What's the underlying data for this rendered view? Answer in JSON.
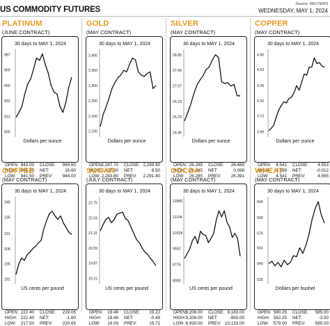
{
  "header": {
    "title": "US COMMODITY FUTURES",
    "source": "Source: REUTERS",
    "date": "WEDNESDAY, MAY 1, 2024"
  },
  "panels": [
    {
      "title": "PLATINUM",
      "contract": "(JUNE CONTRACT)",
      "period": "30 days to MAY 1, 2024",
      "unit": "Dollars per ounce",
      "stats": {
        "open_label": "OPEN:",
        "open": "943.00",
        "close_label": "CLOSE:",
        "close": "960.60",
        "high_label": "HIGH:",
        "high": "965.00",
        "net_label": "NET:",
        "net": "16.60",
        "low_label": "LOW:",
        "low": "941.50",
        "prev_label": "PREV:",
        "prev": "944.00"
      }
    },
    {
      "title": "GOLD",
      "contract": "(MAY CONTRACT)",
      "period": "30 days to MAY 1, 2024",
      "unit": "Dollars per ounce",
      "stats": {
        "open_label": "OPEN:",
        "open": "2,287.70",
        "close_label": "CLOSE:",
        "close": "2,299.90",
        "high_label": "HIGH:",
        "high": "2,327.30",
        "net_label": "NET:",
        "net": "8.50",
        "low_label": "LOW:",
        "low": "2,283.80",
        "prev_label": "PREV:",
        "prev": "2,291.40"
      }
    },
    {
      "title": "SILVER",
      "contract": "(MAY CONTRACT)",
      "period": "30 days to MAY 1, 2024",
      "unit": "Dollars per ounce",
      "stats": {
        "open_label": "OPEN:",
        "open": "26.285",
        "close_label": "CLOSE:",
        "close": "26.489",
        "high_label": "HIGH:",
        "high": "26.945",
        "net_label": "NET:",
        "net": "0.098",
        "low_label": "LOW:",
        "low": "26.285",
        "prev_label": "PREV:",
        "prev": "26.391"
      }
    },
    {
      "title": "COPPER",
      "contract": "(MAY CONTRACT)",
      "period": "30 days to MAY 1, 2024",
      "unit": "Dollars per ounce",
      "stats": {
        "open_label": "OPEN:",
        "open": "4.541",
        "close_label": "CLOSE:",
        "close": "4.553",
        "high_label": "HIGH:",
        "high": "4.599",
        "net_label": "NET:",
        "net": "-0.012",
        "low_label": "LOW:",
        "low": "4.541",
        "prev_label": "PREV:",
        "prev": "4.565"
      }
    },
    {
      "title": "COFFEE",
      "contract": "(MAY CONTRACT)",
      "period": "30 days to MAY 1, 2024",
      "unit": "US cents per pound",
      "stats": {
        "open_label": "OPEN:",
        "open": "222.40",
        "close_label": "CLOSE:",
        "close": "219.05",
        "high_label": "HIGH:",
        "high": "222.40",
        "net_label": "NET:",
        "net": "-1.60",
        "low_label": "LOW:",
        "low": "217.50",
        "prev_label": "PREV:",
        "prev": "220.65"
      }
    },
    {
      "title": "SUGAR",
      "contract": "(JULY CONTRACT)",
      "period": "30 days to MAY 1, 2024",
      "unit": "US cents per pound",
      "stats": {
        "open_label": "OPEN:",
        "open": "19.48",
        "close_label": "CLOSE:",
        "close": "19.22",
        "high_label": "HIGH:",
        "high": "19.48",
        "net_label": "NET:",
        "net": "-0.49",
        "low_label": "LOW:",
        "low": "19.09",
        "prev_label": "PREV:",
        "prev": "19.71"
      }
    },
    {
      "title": "COCOA",
      "contract": "(MAY CONTRACT)",
      "period": "30 days to MAY 1, 2024",
      "unit": "US cents per pound",
      "stats": {
        "open_label": "OPEN:",
        "open": "9,206.00",
        "close_label": "CLOSE:",
        "close": "9,183.00",
        "high_label": "HIGH:",
        "high": "9,206.00",
        "net_label": "NET:",
        "net": "-950.00",
        "low_label": "LOW:",
        "low": "8,930.00",
        "prev_label": "PREV:",
        "prev": "10,133.00"
      }
    },
    {
      "title": "WHEAT",
      "contract": "(MAY CONTRACT)",
      "period": "30 days to MAY 1, 2024",
      "unit": "Dollars per bushel",
      "stats": {
        "open_label": "OPEN:",
        "open": "580.25",
        "close_label": "CLOSE:",
        "close": "585.00",
        "high_label": "HIGH:",
        "high": "582.25",
        "net_label": "NET:",
        "net": "-3.50",
        "low_label": "LOW:",
        "low": "579.00",
        "prev_label": "PREV:",
        "prev": "585.00"
      }
    }
  ],
  "chart_data": [
    {
      "type": "line",
      "title": "PLATINUM",
      "subtitle": "30 days to MAY 1, 2024",
      "ylabel": "Dollars per ounce",
      "yticks": [
        "987",
        "969",
        "950",
        "932",
        "913",
        "895"
      ],
      "ylim": [
        892,
        990
      ],
      "series": [
        {
          "values": [
            912,
            918,
            925,
            940,
            952,
            958,
            970,
            983,
            980,
            988,
            975,
            965,
            950,
            942,
            940,
            925,
            918,
            930,
            948,
            960
          ]
        }
      ]
    },
    {
      "type": "line",
      "title": "GOLD",
      "subtitle": "30 days to MAY 1, 2024",
      "ylabel": "Dollars per ounce",
      "yticks": [
        "2,400",
        "2,350",
        "2,300",
        "2,250",
        "2,200",
        "2,150"
      ],
      "ylim": [
        2140,
        2410
      ],
      "series": [
        {
          "values": [
            2165,
            2205,
            2230,
            2258,
            2290,
            2310,
            2325,
            2335,
            2350,
            2345,
            2370,
            2390,
            2385,
            2345,
            2335,
            2330,
            2340,
            2345,
            2290,
            2300
          ]
        }
      ]
    },
    {
      "type": "line",
      "title": "SILVER",
      "subtitle": "30 days to MAY 1, 2024",
      "ylabel": "Dollars per ounce",
      "yticks": [
        "28.85",
        "27.96",
        "27.07",
        "26.18",
        "25.29",
        "24.40"
      ],
      "ylim": [
        24.3,
        29.0
      ],
      "series": [
        {
          "values": [
            25.05,
            25.5,
            26.0,
            26.6,
            27.1,
            27.4,
            27.65,
            28.0,
            28.15,
            28.55,
            28.85,
            28.7,
            27.3,
            27.2,
            27.25,
            27.05,
            27.15,
            26.5,
            26.5
          ]
        }
      ]
    },
    {
      "type": "line",
      "title": "COPPER",
      "subtitle": "30 days to MAY 1, 2024",
      "ylabel": "Dollars per ounce",
      "yticks": [
        "4.66",
        "4.53",
        "4.39",
        "4.26",
        "4.13",
        "3.99"
      ],
      "ylim": [
        3.97,
        4.68
      ],
      "series": [
        {
          "values": [
            4.0,
            4.02,
            4.05,
            4.12,
            4.18,
            4.22,
            4.25,
            4.24,
            4.28,
            4.29,
            4.33,
            4.39,
            4.35,
            4.42,
            4.49,
            4.48,
            4.55,
            4.55,
            4.63,
            4.58,
            4.59,
            4.56,
            4.55
          ]
        }
      ]
    },
    {
      "type": "line",
      "title": "COFFEE",
      "subtitle": "30 days to MAY 1, 2024",
      "ylabel": "US cents per pound",
      "yticks": [
        "248",
        "235",
        "221",
        "208",
        "195",
        "182"
      ],
      "ylim": [
        180,
        250
      ],
      "series": [
        {
          "values": [
            186,
            195,
            200,
            198,
            203,
            205,
            208,
            210,
            213,
            215,
            225,
            232,
            238,
            240,
            236,
            233,
            236,
            230,
            226,
            222,
            220
          ]
        }
      ]
    },
    {
      "type": "line",
      "title": "SUGAR",
      "subtitle": "30 days to MAY 1, 2024",
      "ylabel": "US cents per pound",
      "yticks": [
        "22.75",
        "22.03",
        "21.31",
        "20.59",
        "19.87",
        "19.15"
      ],
      "ylim": [
        19.0,
        22.9
      ],
      "series": [
        {
          "values": [
            21.4,
            21.7,
            21.95,
            22.05,
            21.8,
            21.95,
            22.2,
            22.25,
            22.3,
            22.0,
            21.9,
            21.6,
            21.3,
            21.0,
            20.85,
            20.6,
            20.4,
            20.3,
            20.1,
            19.95,
            19.75
          ]
        }
      ]
    },
    {
      "type": "line",
      "title": "COCOA",
      "subtitle": "30 days to MAY 1, 2024",
      "ylabel": "US cents per pound",
      "yticks": [
        "11880",
        "11104",
        "10328",
        "9552",
        "8776",
        "8000"
      ],
      "ylim": [
        7950,
        11950
      ],
      "series": [
        {
          "values": [
            9080,
            9300,
            9550,
            9950,
            10150,
            9800,
            10400,
            10250,
            10200,
            9850,
            10050,
            10300,
            10950,
            11400,
            11100,
            11400,
            10850,
            10600,
            10100,
            10300,
            10050,
            9183
          ]
        }
      ]
    },
    {
      "type": "line",
      "title": "WHEAT",
      "subtitle": "30 days to MAY 1, 2024",
      "ylabel": "Dollars per bushel",
      "yticks": [
        "604",
        "590",
        "576",
        "563",
        "549",
        "535"
      ],
      "ylim": [
        533,
        606
      ],
      "series": [
        {
          "values": [
            549,
            551,
            547,
            550,
            546,
            552,
            548,
            550,
            556,
            555,
            563,
            558,
            565,
            575,
            588,
            598,
            604,
            592,
            585
          ]
        }
      ]
    }
  ]
}
